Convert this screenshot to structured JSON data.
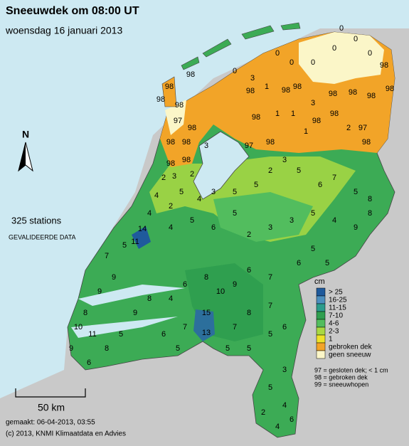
{
  "header": {
    "title": "Sneeuwdek om 08:00 UT",
    "subtitle": "woensdag 16 januari 2013"
  },
  "north": "N",
  "station_count": "325 stations",
  "status": "GEVALIDEERDE DATA",
  "scale": "50 km",
  "footer": {
    "made": "gemaakt: 06-04-2013, 03:55",
    "copyright": "(c) 2013, KNMI Klimaatdata en Advies"
  },
  "legend": {
    "unit": "cm",
    "items": [
      {
        "label": "> 25",
        "color": "#1f5a9c"
      },
      {
        "label": "16-25",
        "color": "#4d8fbf"
      },
      {
        "label": "11-15",
        "color": "#2c9c8c"
      },
      {
        "label": "7-10",
        "color": "#2f9f4f"
      },
      {
        "label": "4-6",
        "color": "#52bd5e"
      },
      {
        "label": "2-3",
        "color": "#a9d843"
      },
      {
        "label": "1",
        "color": "#eee22a"
      },
      {
        "label": "gebroken dek",
        "color": "#f2a428"
      },
      {
        "label": "geen sneeuw",
        "color": "#fbf6c8"
      }
    ],
    "notes": [
      "97 = gesloten dek; < 1 cm",
      "98 = gebroken dek",
      "99 = sneeuwhopen"
    ]
  },
  "stations": [
    98,
    98,
    98,
    98,
    0,
    3,
    98,
    1,
    98,
    98,
    3,
    98,
    98,
    98,
    98,
    98,
    0,
    0,
    0,
    0,
    0,
    0,
    0,
    1,
    1,
    98,
    98,
    2,
    97,
    98,
    1,
    98,
    98,
    97,
    97,
    98,
    98,
    98,
    98,
    98,
    3,
    2,
    3,
    2,
    4,
    2,
    5,
    4,
    3,
    5,
    5,
    2,
    3,
    5,
    6,
    7,
    5,
    8,
    8,
    9,
    4,
    5,
    3,
    3,
    2,
    5,
    6,
    5,
    4,
    4,
    14,
    11,
    5,
    7,
    9,
    9,
    8,
    10,
    11,
    9,
    6,
    8,
    5,
    9,
    8,
    4,
    6,
    8,
    10,
    9,
    6,
    7,
    7,
    8,
    7,
    15,
    13,
    7,
    6,
    5,
    5,
    5,
    5,
    3,
    5,
    4,
    4,
    2,
    6,
    6,
    6,
    5,
    5
  ]
}
